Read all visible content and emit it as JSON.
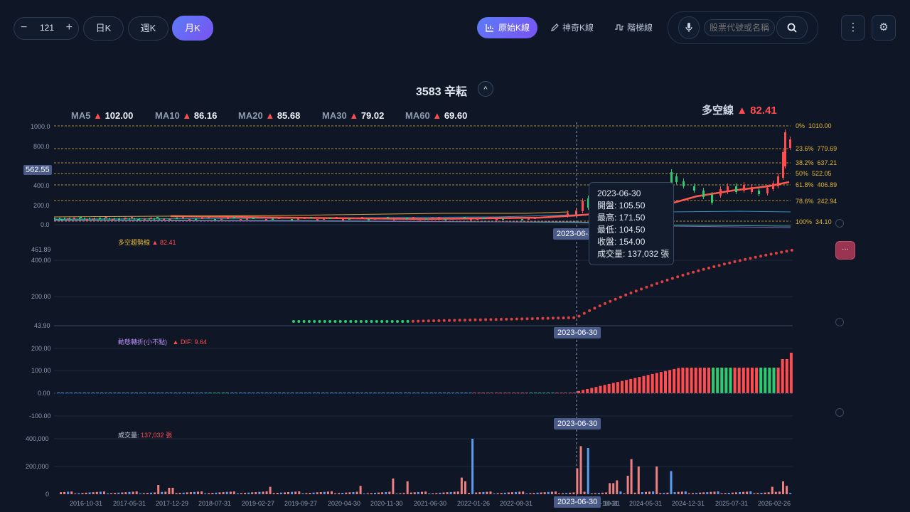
{
  "toolbar": {
    "minus": "−",
    "count": "121",
    "plus": "+",
    "periods": [
      "日K",
      "週K",
      "月K"
    ],
    "active_period": "月K",
    "modes": [
      {
        "label": "原始K線",
        "icon": "chart-bar-icon",
        "active": true
      },
      {
        "label": "神奇K線",
        "icon": "pencil-icon",
        "active": false
      },
      {
        "label": "階梯線",
        "icon": "step-line-icon",
        "active": false
      }
    ],
    "search_placeholder": "股票代號或名稱",
    "more": "⋮",
    "settings": "⚙"
  },
  "stock": {
    "title": "3583 辛耘",
    "collapse": "^"
  },
  "ma": [
    {
      "k": "MA5",
      "v": "102.00"
    },
    {
      "k": "MA10",
      "v": "86.16"
    },
    {
      "k": "MA20",
      "v": "85.68"
    },
    {
      "k": "MA30",
      "v": "79.02"
    },
    {
      "k": "MA60",
      "v": "69.60"
    }
  ],
  "arrow_up": "▲",
  "bull_bear": {
    "label": "多空線",
    "value": "82.41"
  },
  "price_axis": [
    "1000.0",
    "800.0",
    "600.0",
    "400.0",
    "200.0",
    "0.0"
  ],
  "current_price_badge": "562.55",
  "fib_levels": [
    {
      "pct": "0%",
      "val": "1010.00"
    },
    {
      "pct": "23.6%",
      "val": "779.69"
    },
    {
      "pct": "38.2%",
      "val": "637.21"
    },
    {
      "pct": "50%",
      "val": "522.05"
    },
    {
      "pct": "61.8%",
      "val": "406.89"
    },
    {
      "pct": "78.6%",
      "val": "242.94"
    },
    {
      "pct": "100%",
      "val": "34.10"
    }
  ],
  "crosshair_date": "2023-06-30",
  "tooltip": {
    "date": "2023-06-30",
    "open": "開盤: 105.50",
    "high": "最高: 171.50",
    "low": "最低: 104.50",
    "close": "收盤: 154.00",
    "vol": "成交量: 137,032 張"
  },
  "trend_panel": {
    "label": "多空趨勢線",
    "value": "82.41",
    "axis": [
      "461.89",
      "400.00",
      "200.00",
      "43.90"
    ]
  },
  "momentum_panel": {
    "label": "動態轉折(小不點)",
    "value": "DIF: 9.64",
    "axis": [
      "200.00",
      "100.00",
      "0.00",
      "-100.00"
    ]
  },
  "volume_panel": {
    "label": "成交量:",
    "value": "137,032 張",
    "axis": [
      "400,000",
      "200,000",
      "0"
    ]
  },
  "x_dates": [
    "2016-10-31",
    "2017-05-31",
    "2017-12-29",
    "2018-07-31",
    "2019-02-27",
    "2019-09-27",
    "2020-04-30",
    "2020-11-30",
    "2021-06-30",
    "2022-01-26",
    "2022-08-31",
    "2023-03-31",
    "2023-10-31",
    "2024-05-31",
    "2024-12-31",
    "2025-07-31",
    "2026-02-26"
  ],
  "x_partial_2023_10": "10-31",
  "colors": {
    "up": "#ff4d4f",
    "down": "#2ecc71",
    "accent": "#6b6df5",
    "fib": "#e2b53a",
    "vol_blue": "#5b9bf0",
    "bg": "#0f1727"
  },
  "ellipsis": "···"
}
